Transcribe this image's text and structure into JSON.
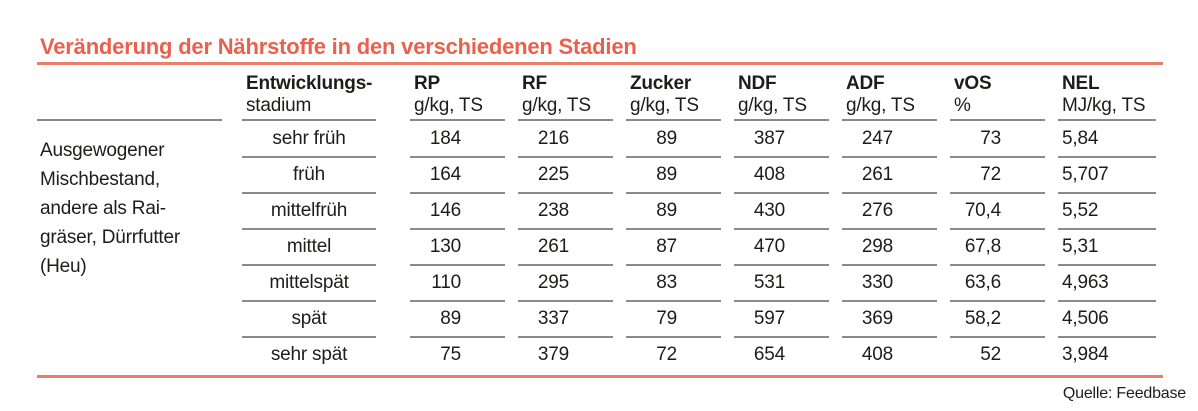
{
  "colors": {
    "accent_title": "#e9614c",
    "accent_rule": "#ec7e68",
    "grid_line": "#8a8a8a"
  },
  "header": {
    "cols": [
      {
        "l1": "Entwicklungs-",
        "l2": "stadium"
      },
      {
        "l1": "RP",
        "l2": "g/kg, TS"
      },
      {
        "l1": "RF",
        "l2": "g/kg, TS"
      },
      {
        "l1": "Zucker",
        "l2": "g/kg, TS"
      },
      {
        "l1": "NDF",
        "l2": "g/kg, TS"
      },
      {
        "l1": "ADF",
        "l2": "g/kg, TS"
      },
      {
        "l1": "vOS",
        "l2": "%"
      },
      {
        "l1": "NEL",
        "l2": "MJ/kg, TS"
      }
    ]
  },
  "row_label_lines": [
    "Ausgewogener",
    "Mischbestand,",
    "andere als Rai-",
    "gräser, Dürrfutter",
    "(Heu)"
  ],
  "chart_data": {
    "type": "table",
    "title": "Veränderung der Nährstoffe in den verschiedenen Stadien",
    "row_group_label": "Ausgewogener Mischbestand, andere als Raigräser, Dürrfutter (Heu)",
    "columns": [
      "Entwicklungsstadium",
      "RP g/kg, TS",
      "RF g/kg, TS",
      "Zucker g/kg, TS",
      "NDF g/kg, TS",
      "ADF g/kg, TS",
      "vOS %",
      "NEL MJ/kg, TS"
    ],
    "rows": [
      [
        "sehr früh",
        "184",
        "216",
        "89",
        "387",
        "247",
        "73",
        "5,84"
      ],
      [
        "früh",
        "164",
        "225",
        "89",
        "408",
        "261",
        "72",
        "5,707"
      ],
      [
        "mittelfrüh",
        "146",
        "238",
        "89",
        "430",
        "276",
        "70,4",
        "5,52"
      ],
      [
        "mittel",
        "130",
        "261",
        "87",
        "470",
        "298",
        "67,8",
        "5,31"
      ],
      [
        "mittelspät",
        "110",
        "295",
        "83",
        "531",
        "330",
        "63,6",
        "4,963"
      ],
      [
        "spät",
        "89",
        "337",
        "79",
        "597",
        "369",
        "58,2",
        "4,506"
      ],
      [
        "sehr spät",
        "75",
        "379",
        "72",
        "654",
        "408",
        "52",
        "3,984"
      ]
    ],
    "source": "Quelle: Feedbase"
  }
}
